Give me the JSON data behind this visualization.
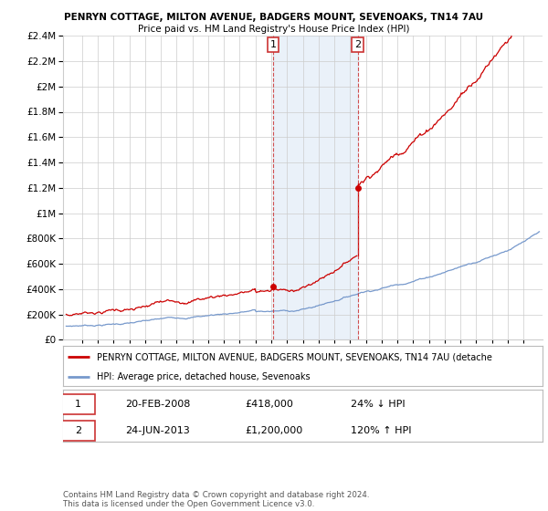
{
  "title1": "PENRYN COTTAGE, MILTON AVENUE, BADGERS MOUNT, SEVENOAKS, TN14 7AU",
  "title2": "Price paid vs. HM Land Registry's House Price Index (HPI)",
  "legend_line1": "PENRYN COTTAGE, MILTON AVENUE, BADGERS MOUNT, SEVENOAKS, TN14 7AU (detache",
  "legend_line2": "HPI: Average price, detached house, Sevenoaks",
  "annotation1_date": "20-FEB-2008",
  "annotation1_price": "£418,000",
  "annotation1_hpi": "24% ↓ HPI",
  "annotation2_date": "24-JUN-2013",
  "annotation2_price": "£1,200,000",
  "annotation2_hpi": "120% ↑ HPI",
  "footer": "Contains HM Land Registry data © Crown copyright and database right 2024.\nThis data is licensed under the Open Government Licence v3.0.",
  "sale1_year": 2008.13,
  "sale1_price": 418000,
  "sale2_year": 2013.48,
  "sale2_price": 1200000,
  "vline1_year": 2008.13,
  "vline2_year": 2013.48,
  "ylim": [
    0,
    2400000
  ],
  "xlim_start": 1994.8,
  "xlim_end": 2025.2,
  "red_color": "#cc0000",
  "blue_color": "#7799cc",
  "vline_color": "#cc3333",
  "background_color": "#ffffff",
  "plot_bg_color": "#ffffff",
  "grid_color": "#cccccc",
  "span_color": "#dde8f5",
  "span_alpha": 0.6
}
